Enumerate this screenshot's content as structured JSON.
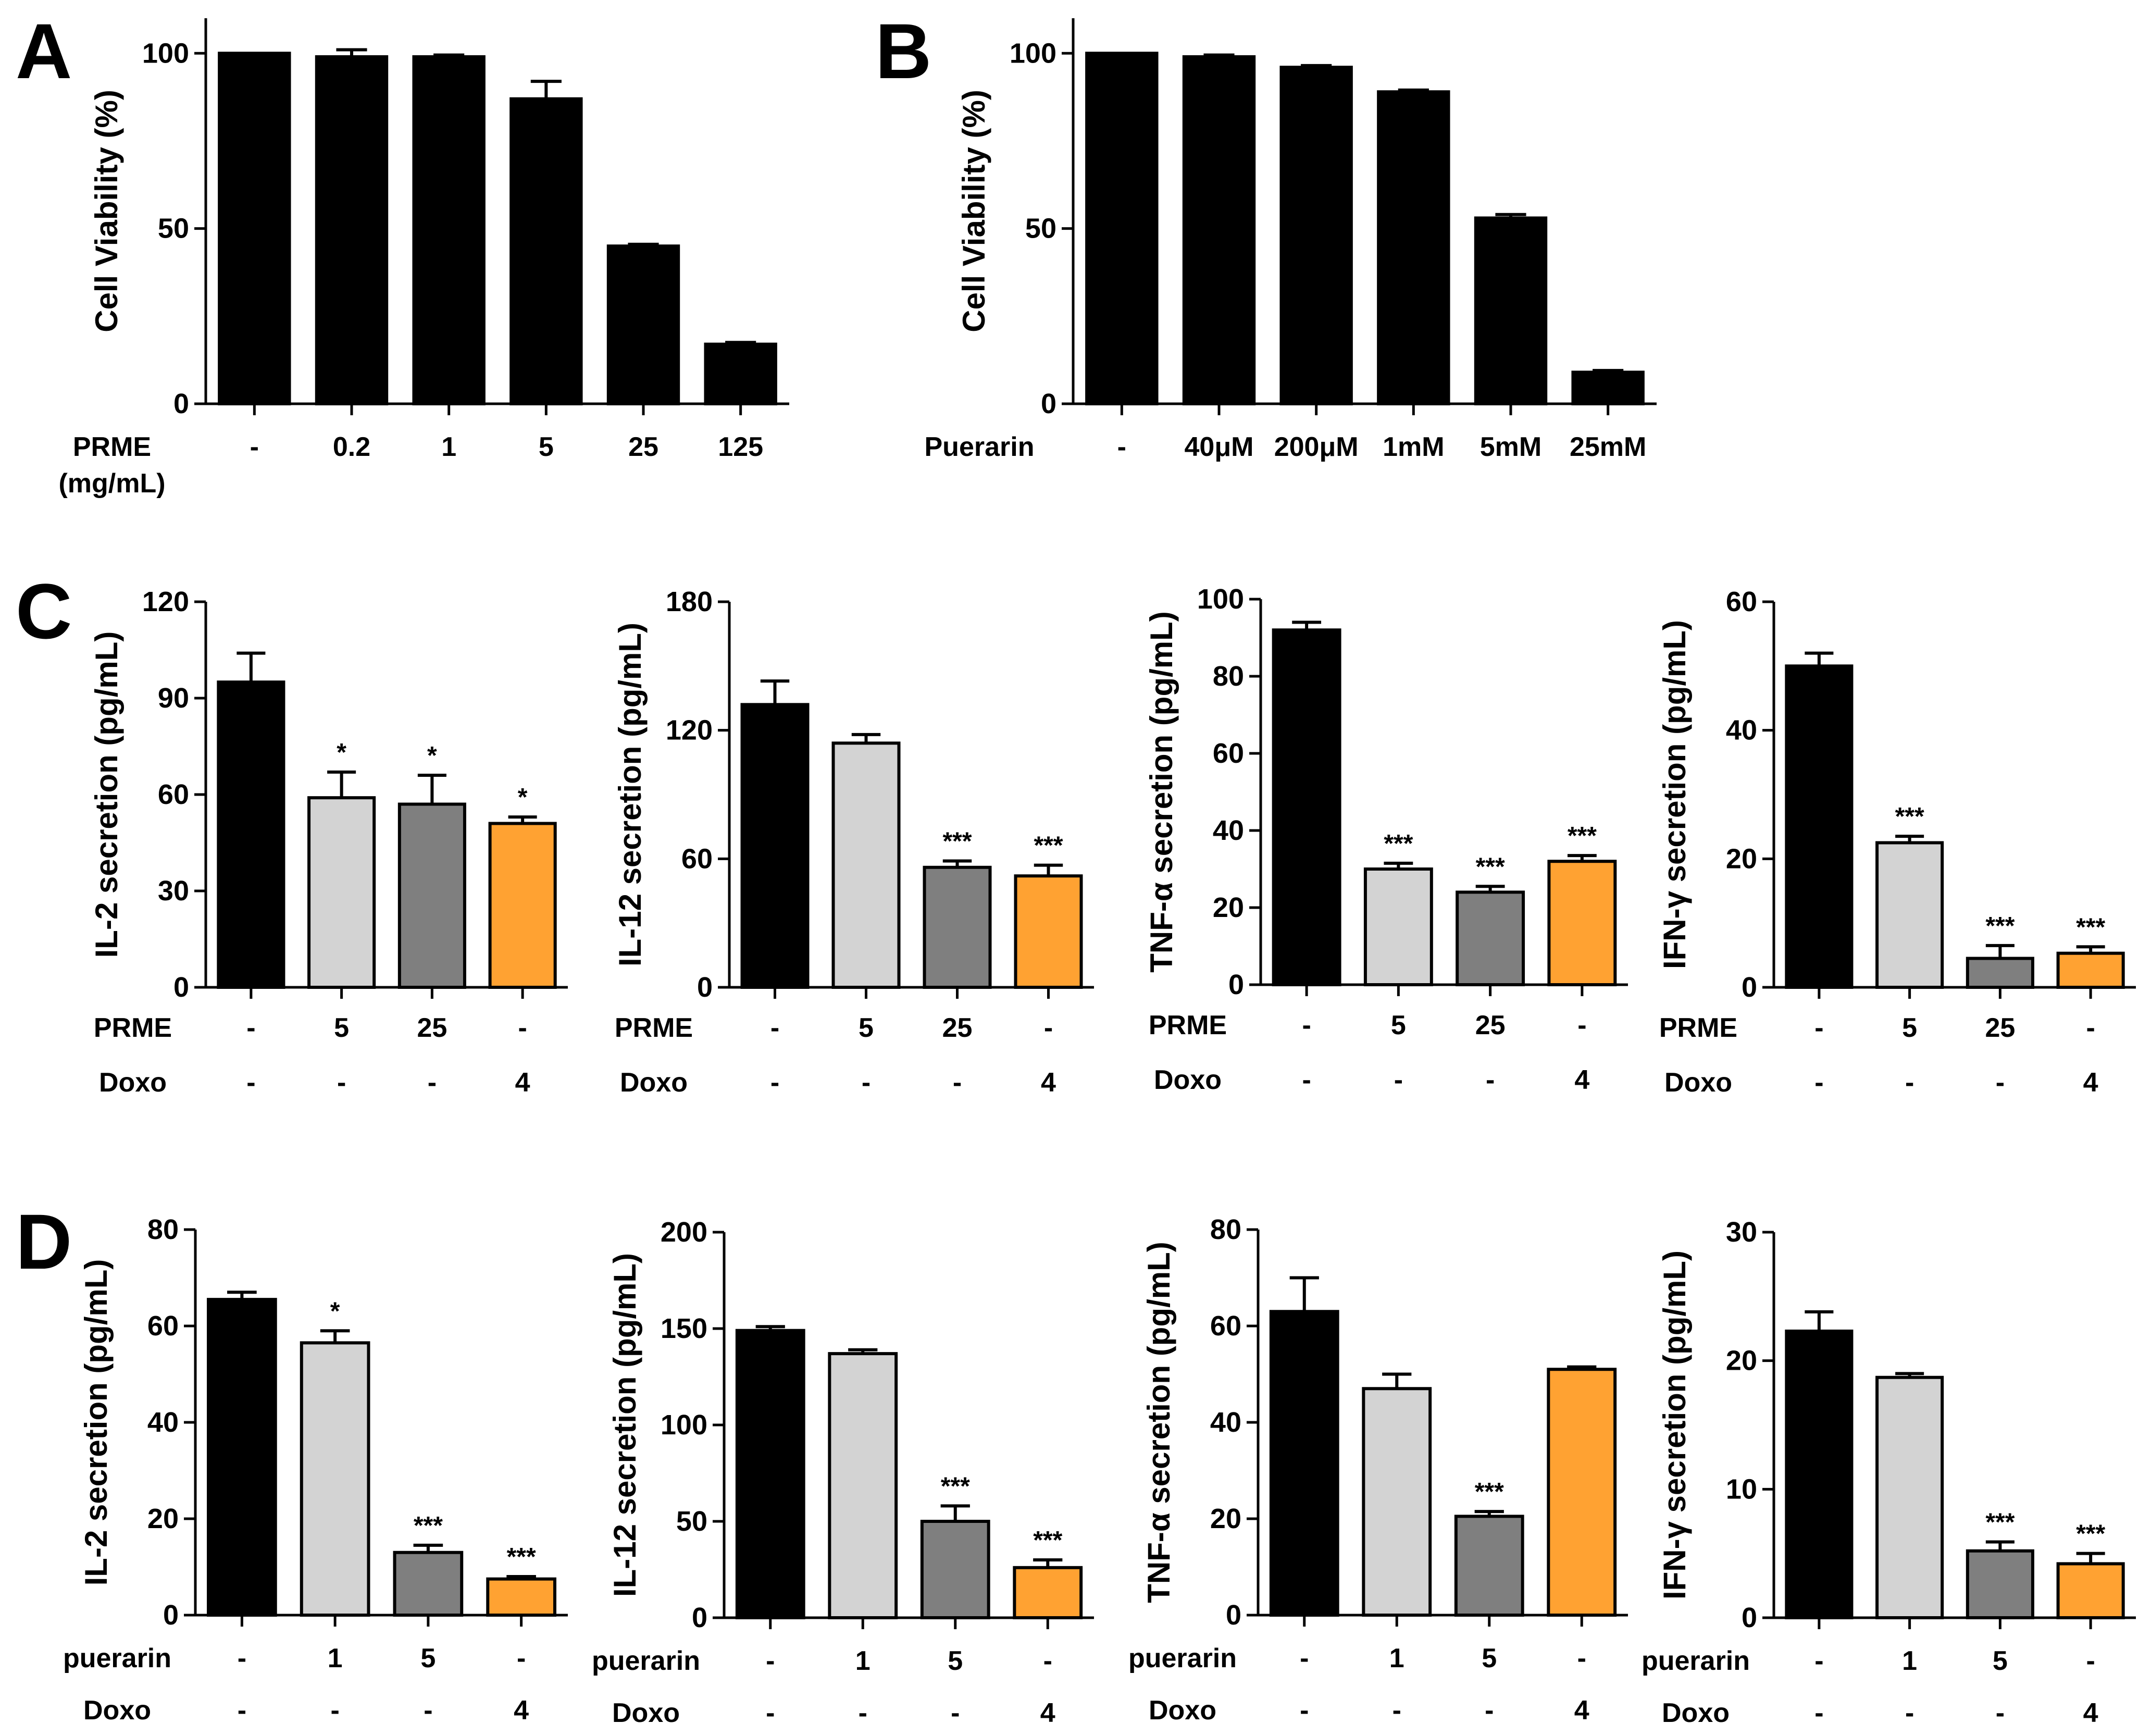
{
  "colors": {
    "black": "#000000",
    "light_gray": "#d3d3d3",
    "dark_gray": "#7f7f7f",
    "orange": "#ffa232"
  },
  "panel_letters": [
    "A",
    "B",
    "C",
    "D"
  ],
  "chart_data": [
    {
      "panel": "A",
      "type": "bar",
      "ylabel": "Cell Viability (%)",
      "ylim": [
        0,
        110
      ],
      "yticks": [
        0,
        50,
        100
      ],
      "row_labels": [
        {
          "name": "PRME\n(mg/mL)",
          "values": [
            "-",
            "0.2",
            "1",
            "5",
            "25",
            "125"
          ]
        }
      ],
      "categories": [
        "-",
        "0.2",
        "1",
        "5",
        "25",
        "125"
      ],
      "values": [
        100,
        99,
        99,
        87,
        45,
        17
      ],
      "errors": [
        0,
        2,
        0.5,
        5,
        0.5,
        0.5
      ],
      "bar_colors": [
        "black",
        "black",
        "black",
        "black",
        "black",
        "black"
      ],
      "significance": [
        "",
        "",
        "",
        "",
        "",
        ""
      ]
    },
    {
      "panel": "B",
      "type": "bar",
      "ylabel": "Cell Viability (%)",
      "ylim": [
        0,
        110
      ],
      "yticks": [
        0,
        50,
        100
      ],
      "row_labels": [
        {
          "name": "Puerarin",
          "values": [
            "-",
            "40μM",
            "200μM",
            "1mM",
            "5mM",
            "25mM"
          ]
        }
      ],
      "categories": [
        "-",
        "40μM",
        "200μM",
        "1mM",
        "5mM",
        "25mM"
      ],
      "values": [
        100,
        99,
        96,
        89,
        53,
        9
      ],
      "errors": [
        0,
        0.5,
        0.5,
        0.5,
        1,
        0.5
      ],
      "bar_colors": [
        "black",
        "black",
        "black",
        "black",
        "black",
        "black"
      ],
      "significance": [
        "",
        "",
        "",
        "",
        "",
        ""
      ]
    },
    {
      "panel": "C",
      "type": "bar",
      "ylabel": "IL-2 secretion (pg/mL)",
      "ylim": [
        0,
        120
      ],
      "yticks": [
        0,
        30,
        60,
        90,
        120
      ],
      "row_labels": [
        {
          "name": "PRME",
          "values": [
            "-",
            "5",
            "25",
            "-"
          ]
        },
        {
          "name": "Doxo",
          "values": [
            "-",
            "-",
            "-",
            "4"
          ]
        }
      ],
      "values": [
        95,
        59,
        57,
        51
      ],
      "errors": [
        9,
        8,
        9,
        2
      ],
      "bar_colors": [
        "black",
        "light_gray",
        "dark_gray",
        "orange"
      ],
      "significance": [
        "",
        "*",
        "*",
        "*"
      ]
    },
    {
      "panel": "",
      "type": "bar",
      "ylabel": "IL-12 secretion (pg/mL)",
      "ylim": [
        0,
        180
      ],
      "yticks": [
        0,
        60,
        120,
        180
      ],
      "row_labels": [
        {
          "name": "PRME",
          "values": [
            "-",
            "5",
            "25",
            "-"
          ]
        },
        {
          "name": "Doxo",
          "values": [
            "-",
            "-",
            "-",
            "4"
          ]
        }
      ],
      "values": [
        132,
        114,
        56,
        52
      ],
      "errors": [
        11,
        4,
        3,
        5
      ],
      "bar_colors": [
        "black",
        "light_gray",
        "dark_gray",
        "orange"
      ],
      "significance": [
        "",
        "",
        "***",
        "***"
      ]
    },
    {
      "panel": "",
      "type": "bar",
      "ylabel": "TNF-α  secretion (pg/mL)",
      "ylim": [
        0,
        100
      ],
      "yticks": [
        0,
        20,
        40,
        60,
        80,
        100
      ],
      "row_labels": [
        {
          "name": "PRME",
          "values": [
            "-",
            "5",
            "25",
            "-"
          ]
        },
        {
          "name": "Doxo",
          "values": [
            "-",
            "-",
            "-",
            "4"
          ]
        }
      ],
      "values": [
        92,
        30,
        24,
        32
      ],
      "errors": [
        2,
        1.5,
        1.5,
        1.5
      ],
      "bar_colors": [
        "black",
        "light_gray",
        "dark_gray",
        "orange"
      ],
      "significance": [
        "",
        "***",
        "***",
        "***"
      ]
    },
    {
      "panel": "",
      "type": "bar",
      "ylabel": "IFN-γ  secretion (pg/mL)",
      "ylim": [
        0,
        60
      ],
      "yticks": [
        0,
        20,
        40,
        60
      ],
      "row_labels": [
        {
          "name": "PRME",
          "values": [
            "-",
            "5",
            "25",
            "-"
          ]
        },
        {
          "name": "Doxo",
          "values": [
            "-",
            "-",
            "-",
            "4"
          ]
        }
      ],
      "values": [
        50,
        22.5,
        4.5,
        5.3
      ],
      "errors": [
        2,
        1,
        2,
        1
      ],
      "bar_colors": [
        "black",
        "light_gray",
        "dark_gray",
        "orange"
      ],
      "significance": [
        "",
        "***",
        "***",
        "***"
      ]
    },
    {
      "panel": "D",
      "type": "bar",
      "ylabel": "IL-2 secretion (pg/mL)",
      "ylim": [
        0,
        80
      ],
      "yticks": [
        0,
        20,
        40,
        60,
        80
      ],
      "row_labels": [
        {
          "name": "puerarin",
          "values": [
            "-",
            "1",
            "5",
            "-"
          ]
        },
        {
          "name": "Doxo",
          "values": [
            "-",
            "-",
            "-",
            "4"
          ]
        }
      ],
      "values": [
        65.5,
        56.5,
        13,
        7.5
      ],
      "errors": [
        1.5,
        2.5,
        1.5,
        0.5
      ],
      "bar_colors": [
        "black",
        "light_gray",
        "dark_gray",
        "orange"
      ],
      "significance": [
        "",
        "*",
        "***",
        "***"
      ]
    },
    {
      "panel": "",
      "type": "bar",
      "ylabel": "IL-12 secretion (pg/mL)",
      "ylim": [
        0,
        200
      ],
      "yticks": [
        0,
        50,
        100,
        150,
        200
      ],
      "row_labels": [
        {
          "name": "puerarin",
          "values": [
            "-",
            "1",
            "5",
            "-"
          ]
        },
        {
          "name": "Doxo",
          "values": [
            "-",
            "-",
            "-",
            "4"
          ]
        }
      ],
      "values": [
        149,
        137,
        50,
        26
      ],
      "errors": [
        2,
        2,
        8,
        4
      ],
      "bar_colors": [
        "black",
        "light_gray",
        "dark_gray",
        "orange"
      ],
      "significance": [
        "",
        "",
        "***",
        "***"
      ]
    },
    {
      "panel": "",
      "type": "bar",
      "ylabel": "TNF-α  secretion (pg/mL)",
      "ylim": [
        0,
        80
      ],
      "yticks": [
        0,
        20,
        40,
        60,
        80
      ],
      "row_labels": [
        {
          "name": "puerarin",
          "values": [
            "-",
            "1",
            "5",
            "-"
          ]
        },
        {
          "name": "Doxo",
          "values": [
            "-",
            "-",
            "-",
            "4"
          ]
        }
      ],
      "values": [
        63,
        47,
        20.5,
        51
      ],
      "errors": [
        7,
        3,
        1,
        0.5
      ],
      "bar_colors": [
        "black",
        "light_gray",
        "dark_gray",
        "orange"
      ],
      "significance": [
        "",
        "",
        "***",
        ""
      ]
    },
    {
      "panel": "",
      "type": "bar",
      "ylabel": "IFN-γ  secretion (pg/mL)",
      "ylim": [
        0,
        30
      ],
      "yticks": [
        0,
        10,
        20,
        30
      ],
      "row_labels": [
        {
          "name": "puerarin",
          "values": [
            "-",
            "1",
            "5",
            "-"
          ]
        },
        {
          "name": "Doxo",
          "values": [
            "-",
            "-",
            "-",
            "4"
          ]
        }
      ],
      "values": [
        22.3,
        18.7,
        5.2,
        4.2
      ],
      "errors": [
        1.5,
        0.3,
        0.7,
        0.8
      ],
      "bar_colors": [
        "black",
        "light_gray",
        "dark_gray",
        "orange"
      ],
      "significance": [
        "",
        "",
        "***",
        "***"
      ]
    }
  ]
}
